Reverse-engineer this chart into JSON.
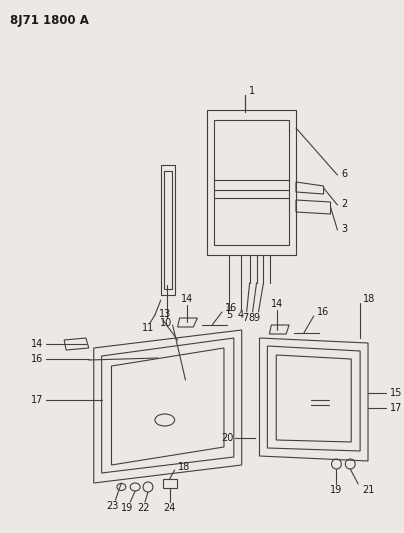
{
  "title": "8J71 1800 A",
  "bg_color": "#ece9e4",
  "line_color": "#404040",
  "text_color": "#1a1a1a",
  "title_fontsize": 8.5,
  "label_fontsize": 7,
  "figsize": [
    4.04,
    5.33
  ],
  "dpi": 100
}
